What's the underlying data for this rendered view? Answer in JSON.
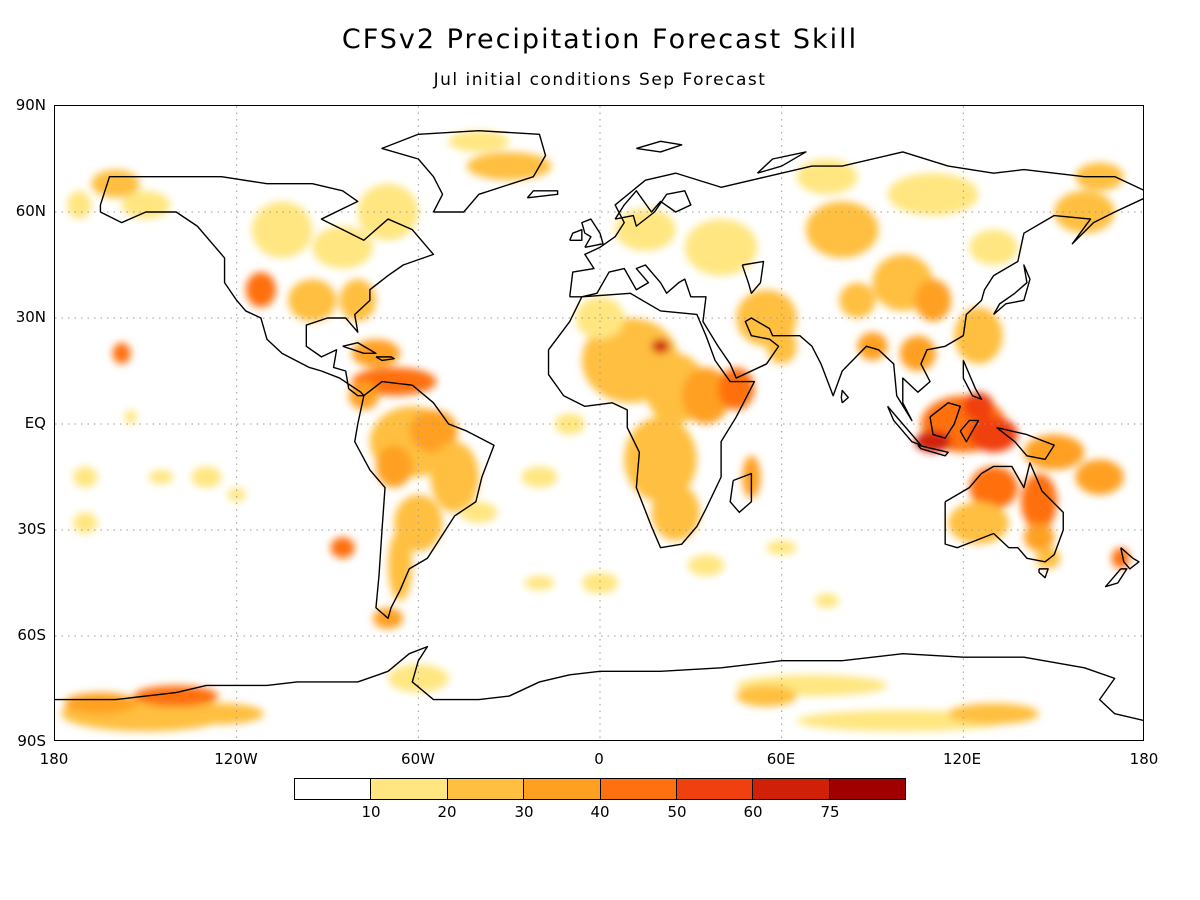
{
  "title": "CFSv2 Precipitation Forecast Skill",
  "subtitle": "Jul initial conditions   Sep Forecast",
  "lat_labels": [
    "90N",
    "60N",
    "30N",
    "EQ",
    "30S",
    "60S",
    "90S"
  ],
  "lon_labels": [
    "180",
    "120W",
    "60W",
    "0",
    "60E",
    "120E",
    "180"
  ],
  "colorbar": {
    "colors": [
      "#ffffff",
      "#ffe680",
      "#ffbf40",
      "#ffa020",
      "#ff7010",
      "#f04010",
      "#d02008",
      "#a00000"
    ],
    "labels": [
      "10",
      "20",
      "30",
      "40",
      "50",
      "60",
      "75"
    ]
  }
}
